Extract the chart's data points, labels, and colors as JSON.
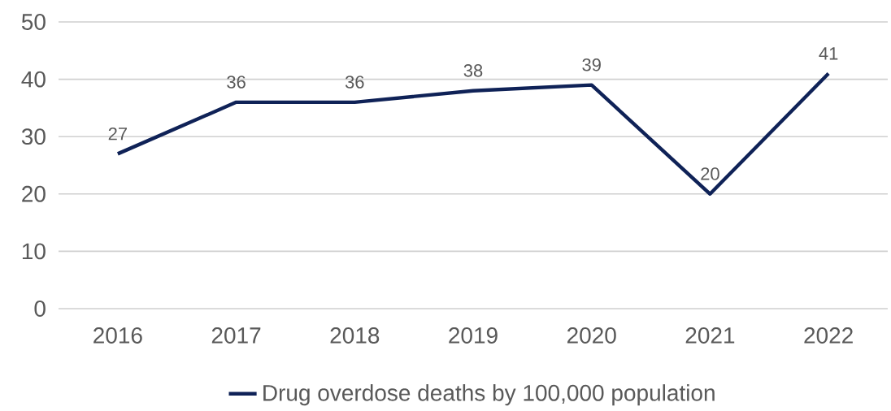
{
  "chart_data": {
    "type": "line",
    "categories": [
      "2016",
      "2017",
      "2018",
      "2019",
      "2020",
      "2021",
      "2022"
    ],
    "series": [
      {
        "name": "Drug overdose deaths by 100,000 population",
        "color": "#0f2257",
        "values": [
          27,
          36,
          36,
          38,
          39,
          20,
          41
        ]
      }
    ],
    "ylim": [
      0,
      50
    ],
    "yticks": [
      0,
      10,
      20,
      30,
      40,
      50
    ],
    "grid": "y",
    "legend": "bottom",
    "data_labels": true,
    "marker": "none",
    "line_style": "solid"
  }
}
